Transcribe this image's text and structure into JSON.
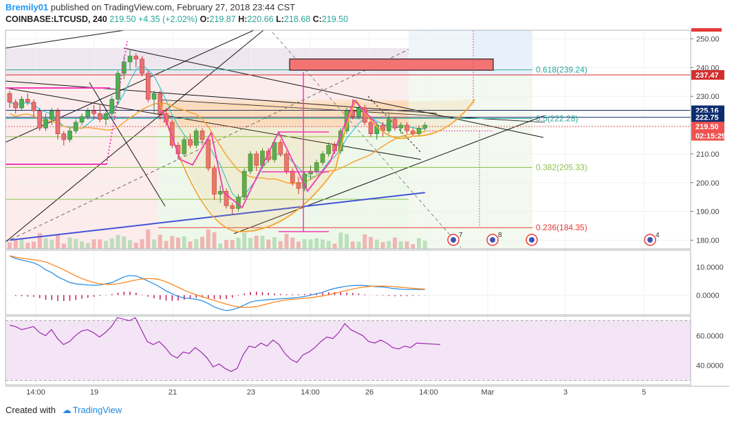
{
  "header": {
    "user": "Bremily01",
    "published": "published on TradingView.com, February 27, 2018 23:44 CST"
  },
  "ohlc": {
    "symbol": "COINBASE:LTCUSD, 240",
    "last": "219.50",
    "change": "+4.35 (+2.02%)",
    "o_label": "O:",
    "o": "219.87",
    "h_label": "H:",
    "h": "220.66",
    "l_label": "L:",
    "l": "218.68",
    "c_label": "C:",
    "c": "219.50"
  },
  "footer": {
    "created_with": "Created with",
    "brand": "TradingView"
  },
  "colors": {
    "up": "#4caf50",
    "down": "#e57373",
    "bb": "#26c6da",
    "ma": "#f7a533",
    "ma_long": "#4354d8",
    "pink": "#f03ab8",
    "rsi": "#9c27b0",
    "macd": "#1e88e5",
    "signal": "#ff7f0e"
  },
  "chart_data": [
    {
      "type": "candlestick",
      "name": "price",
      "y_ticks": [
        180,
        190,
        200,
        210,
        220,
        230,
        240,
        250
      ],
      "y_tick_labels": [
        "180.00",
        "190.00",
        "200.00",
        "210.00",
        "220.00",
        "230.00",
        "240.00",
        "250.00"
      ],
      "ylim": [
        177,
        253
      ],
      "x_tick_labels": [
        "14:00",
        "19",
        "21",
        "23",
        "14:00",
        "26",
        "14:00",
        "Mar",
        "3",
        "5"
      ],
      "price_labels": [
        {
          "text": "237.47",
          "value": 237.47,
          "color": "#d32f2f"
        },
        {
          "text": "225.16",
          "value": 225.16,
          "color": "#0d2c6e"
        },
        {
          "text": "222.75",
          "value": 222.75,
          "color": "#0d2c6e"
        },
        {
          "text": "219.50",
          "value": 219.5,
          "color": "#ef5350"
        },
        {
          "text": "02:15:29",
          "value": 216.3,
          "color": "#ef5350"
        }
      ],
      "fib_labels": [
        {
          "text": "0.618(239.24)",
          "value": 239.24,
          "color": "#26a69a"
        },
        {
          "text": "0.5(222.28)",
          "value": 222.28,
          "color": "#26a69a"
        },
        {
          "text": "0.382(205.33)",
          "value": 205.33,
          "color": "#8bc34a"
        },
        {
          "text": "0.236(184.35)",
          "value": 184.35,
          "color": "#e53935"
        }
      ],
      "event_badges": [
        "7",
        "8",
        "",
        "4"
      ],
      "candles": [
        [
          231,
          232,
          226,
          228
        ],
        [
          228,
          229,
          224,
          226
        ],
        [
          226,
          230,
          225,
          229
        ],
        [
          229,
          231,
          227,
          228
        ],
        [
          228,
          229,
          223,
          225
        ],
        [
          225,
          226,
          218,
          219
        ],
        [
          219,
          224,
          218,
          222
        ],
        [
          222,
          226,
          220,
          225
        ],
        [
          225,
          226,
          215,
          217
        ],
        [
          217,
          218,
          213,
          215
        ],
        [
          215,
          219,
          214,
          218
        ],
        [
          218,
          222,
          217,
          221
        ],
        [
          221,
          224,
          220,
          223
        ],
        [
          223,
          226,
          222,
          225
        ],
        [
          225,
          227,
          222,
          224
        ],
        [
          224,
          227,
          221,
          222
        ],
        [
          222,
          225,
          220,
          224
        ],
        [
          224,
          230,
          223,
          229
        ],
        [
          229,
          239,
          227,
          238
        ],
        [
          238,
          244,
          236,
          242
        ],
        [
          242,
          246,
          239,
          244
        ],
        [
          244,
          245,
          240,
          243
        ],
        [
          243,
          244,
          237,
          238
        ],
        [
          238,
          239,
          228,
          229
        ],
        [
          229,
          232,
          224,
          231
        ],
        [
          231,
          232,
          222,
          224
        ],
        [
          224,
          226,
          220,
          221
        ],
        [
          221,
          222,
          212,
          213
        ],
        [
          213,
          214,
          208,
          210
        ],
        [
          210,
          216,
          209,
          215
        ],
        [
          215,
          217,
          212,
          213
        ],
        [
          213,
          219,
          212,
          218
        ],
        [
          218,
          219,
          213,
          215
        ],
        [
          215,
          216,
          204,
          205
        ],
        [
          205,
          206,
          194,
          196
        ],
        [
          196,
          199,
          193,
          197
        ],
        [
          197,
          198,
          191,
          192
        ],
        [
          192,
          193,
          189,
          191
        ],
        [
          191,
          196,
          190,
          195
        ],
        [
          195,
          205,
          194,
          204
        ],
        [
          204,
          211,
          203,
          210
        ],
        [
          210,
          211,
          204,
          206
        ],
        [
          206,
          212,
          205,
          211
        ],
        [
          211,
          212,
          207,
          208
        ],
        [
          208,
          215,
          207,
          214
        ],
        [
          214,
          215,
          209,
          210
        ],
        [
          210,
          211,
          203,
          204
        ],
        [
          204,
          205,
          199,
          200
        ],
        [
          200,
          202,
          196,
          198
        ],
        [
          198,
          204,
          197,
          203
        ],
        [
          203,
          206,
          201,
          204
        ],
        [
          204,
          208,
          203,
          207
        ],
        [
          207,
          211,
          206,
          210
        ],
        [
          210,
          214,
          209,
          213
        ],
        [
          213,
          214,
          210,
          211
        ],
        [
          211,
          219,
          210,
          218
        ],
        [
          218,
          226,
          217,
          225
        ],
        [
          225,
          229,
          222,
          223
        ],
        [
          223,
          227,
          222,
          226
        ],
        [
          226,
          227,
          220,
          221
        ],
        [
          221,
          223,
          216,
          217
        ],
        [
          217,
          221,
          215,
          220
        ],
        [
          220,
          221,
          216,
          218
        ],
        [
          218,
          224,
          217,
          222
        ],
        [
          222,
          223,
          218,
          219
        ],
        [
          219,
          221,
          217,
          220
        ],
        [
          220,
          221,
          217,
          218
        ],
        [
          218,
          219,
          216,
          217
        ],
        [
          217,
          220,
          216,
          219
        ],
        [
          219,
          221,
          218,
          220
        ]
      ]
    },
    {
      "type": "line",
      "name": "MACD",
      "y_tick_labels": [
        "10.0000",
        "0.0000"
      ],
      "y_ticks": [
        10,
        0
      ],
      "ylim": [
        -7,
        16
      ]
    },
    {
      "type": "line",
      "name": "RSI",
      "y_tick_labels": [
        "60.0000",
        "40.0000"
      ],
      "y_ticks": [
        60,
        40
      ],
      "ylim": [
        27,
        73
      ]
    }
  ]
}
